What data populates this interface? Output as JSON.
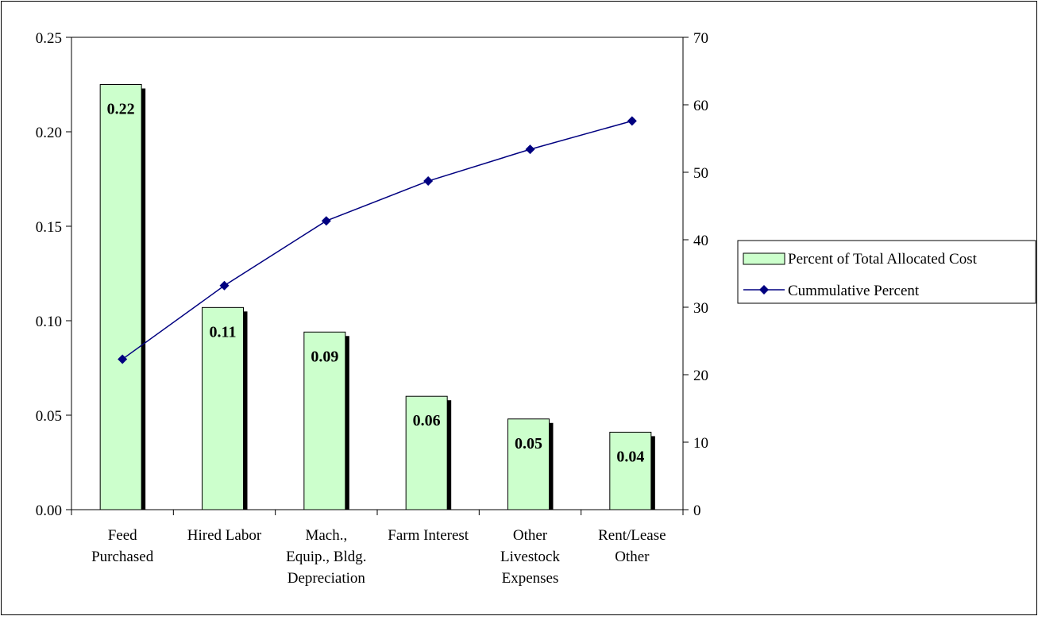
{
  "chart_data": {
    "type": "bar",
    "combo": "bar-line-dual-axis",
    "categories": [
      [
        "Feed",
        "Purchased"
      ],
      [
        "Hired Labor"
      ],
      [
        "Mach.,",
        "Equip., Bldg.",
        "Depreciation"
      ],
      [
        "Farm Interest"
      ],
      [
        "Other",
        "Livestock",
        "Expenses"
      ],
      [
        "Rent/Lease",
        "Other"
      ]
    ],
    "series": [
      {
        "name": "Percent of Total Allocated Cost",
        "type": "bar",
        "axis": "left",
        "values": [
          0.225,
          0.107,
          0.094,
          0.06,
          0.048,
          0.041
        ],
        "data_labels": [
          "0.22",
          "0.11",
          "0.09",
          "0.06",
          "0.05",
          "0.04"
        ],
        "color": "#ccffcc",
        "shadow_color": "#000000"
      },
      {
        "name": "Cummulative Percent",
        "type": "line",
        "axis": "right",
        "values": [
          22.3,
          33.2,
          42.8,
          48.7,
          53.4,
          57.6
        ],
        "color": "#000080",
        "marker": "diamond"
      }
    ],
    "y_left": {
      "ylim": [
        0,
        0.25
      ],
      "ticks": [
        "0.00",
        "0.05",
        "0.10",
        "0.15",
        "0.20",
        "0.25"
      ],
      "tick_values": [
        0,
        0.05,
        0.1,
        0.15,
        0.2,
        0.25
      ]
    },
    "y_right": {
      "ylim": [
        0,
        70
      ],
      "ticks": [
        "0",
        "10",
        "20",
        "30",
        "40",
        "50",
        "60",
        "70"
      ],
      "tick_values": [
        0,
        10,
        20,
        30,
        40,
        50,
        60,
        70
      ]
    },
    "title": "",
    "xlabel": "",
    "ylabel": "",
    "grid": false,
    "legend_placement": "right"
  }
}
